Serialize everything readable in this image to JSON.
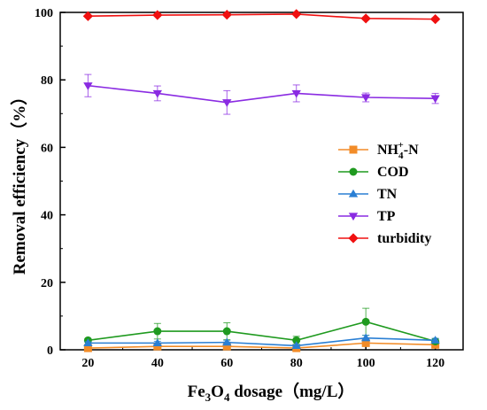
{
  "chart_data": {
    "type": "line",
    "x": [
      20,
      40,
      60,
      80,
      100,
      120
    ],
    "xlim": [
      12,
      128
    ],
    "ylim": [
      0,
      100
    ],
    "xticks": [
      20,
      40,
      60,
      80,
      100,
      120
    ],
    "yticks": [
      0,
      20,
      40,
      60,
      80,
      100
    ],
    "xlabel": {
      "base": "Fe",
      "sub1": "3",
      "mid": "O",
      "sub2": "4",
      "rest": " dosage（mg/L）"
    },
    "ylabel": "Removal efficiency（%）",
    "grid": false,
    "legend_position": "right-middle",
    "series": [
      {
        "name": "NH4+-N",
        "legend": {
          "base": "NH",
          "sub": "4",
          "sup": "+",
          "rest": "-N"
        },
        "color": "#f28c28",
        "marker": "square",
        "values": [
          0.5,
          1.0,
          1.0,
          0.5,
          2.0,
          1.5
        ],
        "errors": [
          0.3,
          0.4,
          0.4,
          0.3,
          0.6,
          0.5
        ]
      },
      {
        "name": "COD",
        "color": "#1f9a1f",
        "marker": "circle",
        "values": [
          2.8,
          5.5,
          5.5,
          2.8,
          8.3,
          2.5
        ],
        "errors": [
          0.5,
          2.3,
          2.5,
          1.2,
          4.0,
          0.8
        ]
      },
      {
        "name": "TN",
        "color": "#2a7fd4",
        "marker": "triangle-up",
        "values": [
          2.0,
          2.0,
          2.2,
          1.2,
          3.5,
          2.8
        ],
        "errors": [
          0.4,
          0.5,
          0.5,
          0.4,
          0.8,
          0.6
        ]
      },
      {
        "name": "TP",
        "color": "#8a2be2",
        "marker": "triangle-down",
        "values": [
          78.3,
          76.0,
          73.3,
          76.0,
          74.8,
          74.5
        ],
        "errors": [
          3.3,
          2.2,
          3.5,
          2.5,
          1.3,
          1.5
        ]
      },
      {
        "name": "turbidity",
        "color": "#f01010",
        "marker": "diamond",
        "values": [
          98.9,
          99.2,
          99.3,
          99.5,
          98.2,
          98.0
        ],
        "errors": [
          0.3,
          0.3,
          0.3,
          0.3,
          0.4,
          0.4
        ]
      }
    ]
  }
}
